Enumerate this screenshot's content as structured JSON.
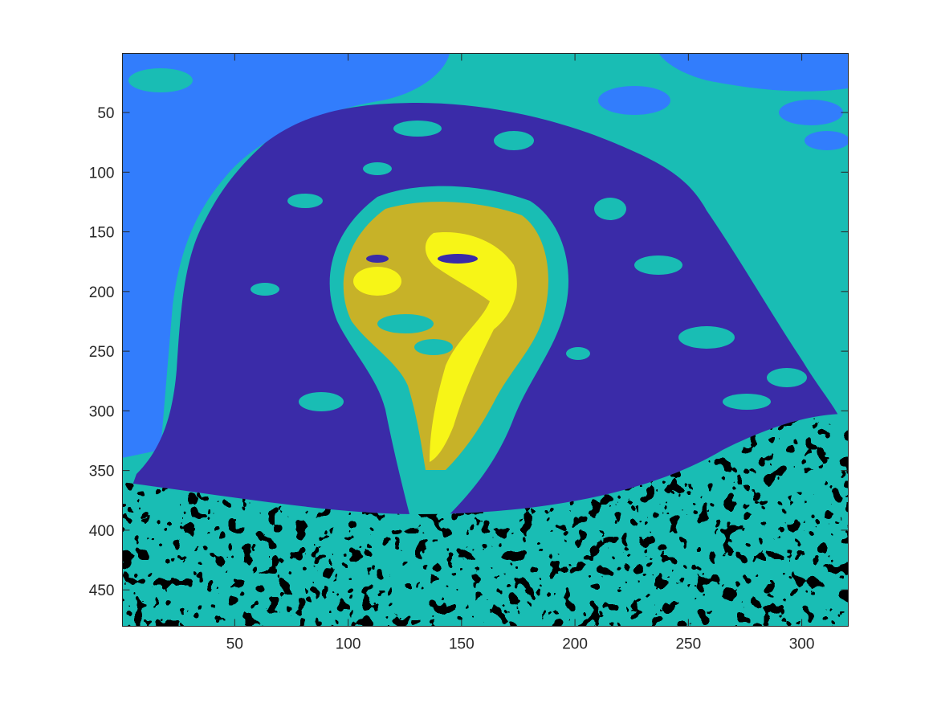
{
  "chart_data": {
    "type": "heatmap",
    "title": "",
    "xlabel": "",
    "ylabel": "",
    "xlim": [
      0.5,
      320.5
    ],
    "ylim": [
      480.5,
      0.5
    ],
    "y_direction": "reverse",
    "grid": false,
    "legend": "none",
    "x_ticks": [
      50,
      100,
      150,
      200,
      250,
      300
    ],
    "y_ticks": [
      50,
      100,
      150,
      200,
      250,
      300,
      350,
      400,
      450
    ],
    "x_tick_labels": [
      "50",
      "100",
      "150",
      "200",
      "250",
      "300"
    ],
    "y_tick_labels": [
      "50",
      "100",
      "150",
      "200",
      "250",
      "300",
      "350",
      "400",
      "450"
    ],
    "palette": [
      "#3a2ba8",
      "#327dfc",
      "#19bdb4",
      "#c7b228",
      "#f7f517"
    ],
    "image_size": [
      320,
      480
    ],
    "content": "cluster-label image of a portrait: face and neck in yellow tones, hair in dark blue, background in light blue and teal, textured multicolour band along the bottom"
  }
}
